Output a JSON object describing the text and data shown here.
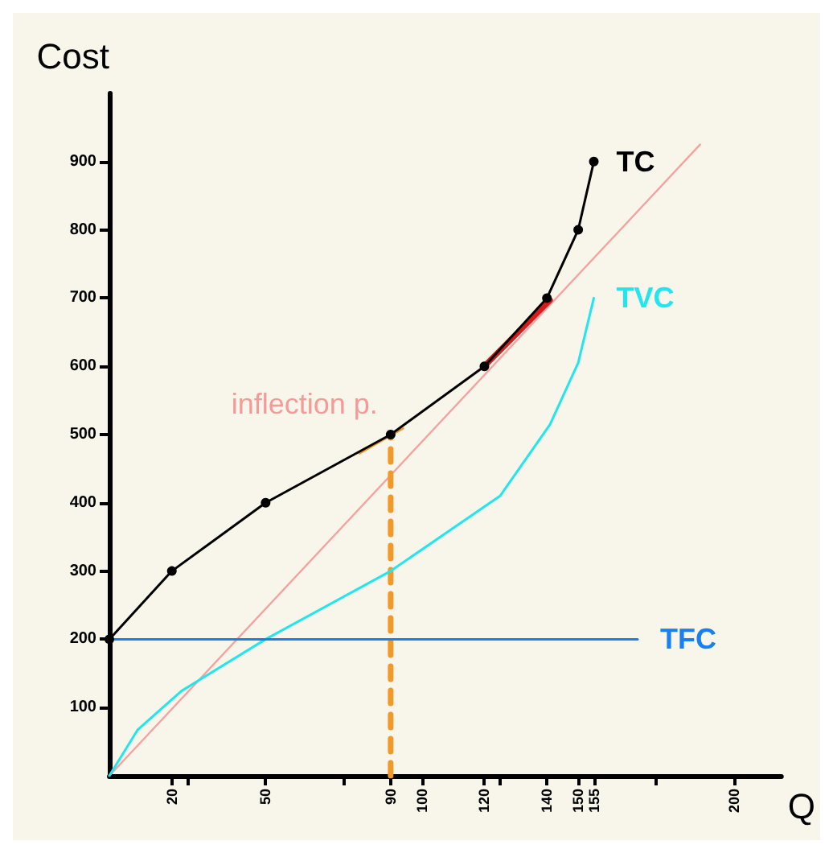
{
  "chart_data": {
    "type": "line",
    "ylabel": "Cost",
    "xlabel": "Q",
    "xlim": [
      0,
      215
    ],
    "ylim": [
      0,
      1000
    ],
    "xticks": [
      20,
      {
        "value": 25,
        "label": null
      },
      50,
      {
        "value": 75,
        "label": null
      },
      90,
      100,
      120,
      {
        "value": 125,
        "label": null
      },
      140,
      150,
      155,
      {
        "value": 175,
        "label": null
      },
      200
    ],
    "yticks": [
      100,
      200,
      300,
      400,
      500,
      600,
      700,
      800,
      900
    ],
    "series": [
      {
        "name": "TC",
        "color": "#000000",
        "marker": "circle",
        "x": [
          0,
          20,
          50,
          90,
          120,
          140,
          150,
          155
        ],
        "values": [
          200,
          300,
          400,
          500,
          600,
          700,
          800,
          900
        ]
      },
      {
        "name": "TVC",
        "color": "#22e5ee",
        "marker": "none",
        "x": [
          0,
          9,
          23,
          50,
          90,
          125,
          141,
          150,
          155
        ],
        "values": [
          0,
          67,
          124,
          200,
          300,
          410,
          515,
          605,
          700
        ]
      },
      {
        "name": "TFC",
        "color": "#1a7ff0",
        "marker": "none",
        "x": [
          0,
          169
        ],
        "values": [
          200,
          200
        ]
      },
      {
        "color": "#f4a3a0",
        "marker": "none",
        "x": [
          0,
          189
        ],
        "values": [
          0,
          925
        ]
      },
      {
        "color": "#d81c1c",
        "marker": "none",
        "x": [
          121,
          141
        ],
        "values": [
          605,
          697
        ]
      },
      {
        "color": "#f19a2a",
        "marker": "none",
        "x": [
          80,
          94
        ],
        "values": [
          472,
          509
        ]
      },
      {
        "color": "#f19a2a",
        "marker": "none",
        "line_style": "dashed",
        "x": [
          90,
          90
        ],
        "values": [
          0,
          500
        ]
      }
    ],
    "annotations": [
      {
        "text": "inflection p.",
        "x": 90,
        "y": 500
      }
    ]
  }
}
